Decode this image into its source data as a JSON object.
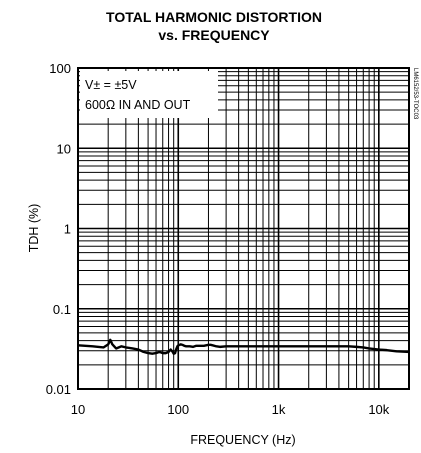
{
  "chart_data": {
    "type": "line",
    "title": "TOTAL HARMONIC DISTORTION",
    "subtitle": "vs. FREQUENCY",
    "xlabel": "FREQUENCY (Hz)",
    "ylabel": "TDH (%)",
    "x_scale": "log",
    "y_scale": "log",
    "xlim": [
      10,
      20000
    ],
    "ylim": [
      0.01,
      100
    ],
    "grid": true,
    "x_ticks": [
      {
        "value": 10,
        "label": "10"
      },
      {
        "value": 100,
        "label": "100"
      },
      {
        "value": 1000,
        "label": "1k"
      },
      {
        "value": 10000,
        "label": "10k"
      }
    ],
    "y_ticks": [
      {
        "value": 100,
        "label": "100"
      },
      {
        "value": 10,
        "label": "10"
      },
      {
        "value": 1,
        "label": "1"
      },
      {
        "value": 0.1,
        "label": "0.1"
      },
      {
        "value": 0.01,
        "label": "0.01"
      }
    ],
    "annotations": [
      "V± = ±5V",
      "600Ω IN AND OUT"
    ],
    "side_code": "LM6152/53-TOC03",
    "series": [
      {
        "x": [
          10,
          14,
          18,
          20,
          21,
          22,
          24,
          27,
          30,
          35,
          40,
          45,
          50,
          55,
          60,
          65,
          70,
          75,
          80,
          84,
          88,
          90,
          93,
          95,
          98,
          100,
          103,
          106,
          110,
          115,
          120,
          130,
          140,
          150,
          160,
          170,
          180,
          190,
          200,
          210,
          220,
          240,
          260,
          300,
          400,
          500,
          700,
          1000,
          2000,
          3000,
          4000,
          5000,
          6000,
          7000,
          8000,
          10000,
          12000,
          15000,
          20000
        ],
        "y": [
          0.035,
          0.034,
          0.033,
          0.036,
          0.041,
          0.036,
          0.032,
          0.034,
          0.033,
          0.032,
          0.031,
          0.029,
          0.028,
          0.0275,
          0.028,
          0.029,
          0.028,
          0.028,
          0.029,
          0.031,
          0.029,
          0.0275,
          0.028,
          0.031,
          0.034,
          0.035,
          0.0355,
          0.036,
          0.0355,
          0.0345,
          0.034,
          0.034,
          0.0335,
          0.0345,
          0.0345,
          0.0345,
          0.0345,
          0.035,
          0.0355,
          0.0355,
          0.035,
          0.034,
          0.0335,
          0.034,
          0.034,
          0.034,
          0.034,
          0.034,
          0.034,
          0.034,
          0.034,
          0.034,
          0.0335,
          0.033,
          0.032,
          0.031,
          0.0305,
          0.0295,
          0.029
        ]
      }
    ],
    "colors": {
      "line": "#000000",
      "grid": "#000000",
      "background": "#ffffff"
    }
  }
}
